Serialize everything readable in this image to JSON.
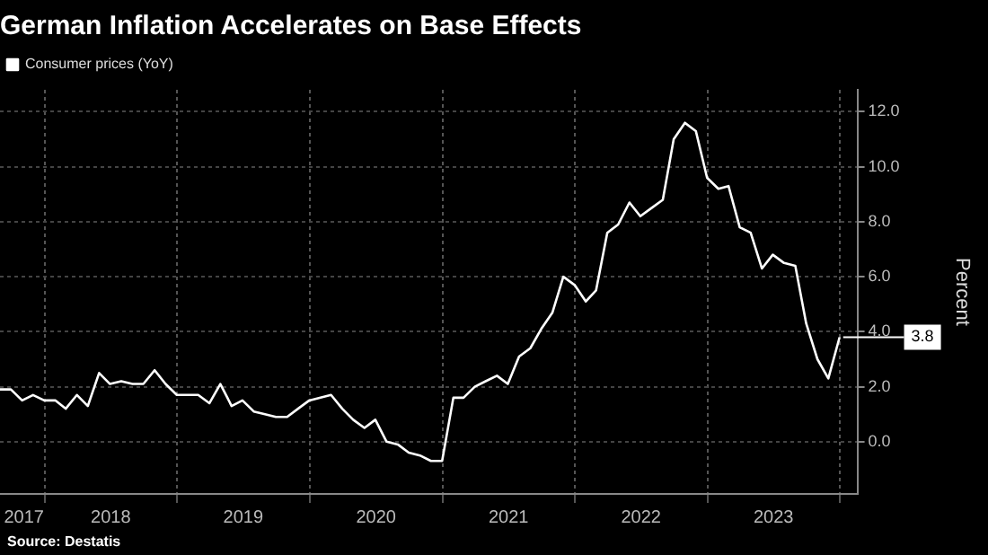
{
  "chart_data": {
    "type": "line",
    "title": "German Inflation Accelerates on Base Effects",
    "ylabel": "Percent",
    "x": [
      "2017-08-31",
      "2017-09-30",
      "2017-10-31",
      "2017-11-30",
      "2017-12-31",
      "2018-01-31",
      "2018-02-28",
      "2018-03-31",
      "2018-04-30",
      "2018-05-31",
      "2018-06-30",
      "2018-07-31",
      "2018-08-31",
      "2018-09-30",
      "2018-10-31",
      "2018-11-30",
      "2018-12-31",
      "2019-01-31",
      "2019-02-28",
      "2019-03-31",
      "2019-04-30",
      "2019-05-31",
      "2019-06-30",
      "2019-07-31",
      "2019-08-31",
      "2019-09-30",
      "2019-10-31",
      "2019-11-30",
      "2019-12-31",
      "2020-01-31",
      "2020-02-29",
      "2020-03-31",
      "2020-04-30",
      "2020-05-31",
      "2020-06-30",
      "2020-07-31",
      "2020-08-31",
      "2020-09-30",
      "2020-10-31",
      "2020-11-30",
      "2020-12-31",
      "2021-01-31",
      "2021-02-28",
      "2021-03-31",
      "2021-04-30",
      "2021-05-31",
      "2021-06-30",
      "2021-07-31",
      "2021-08-31",
      "2021-09-30",
      "2021-10-31",
      "2021-11-30",
      "2021-12-31",
      "2022-01-31",
      "2022-02-28",
      "2022-03-31",
      "2022-04-30",
      "2022-05-31",
      "2022-06-30",
      "2022-07-31",
      "2022-08-31",
      "2022-09-30",
      "2022-10-31",
      "2022-11-30",
      "2022-12-31",
      "2023-01-31",
      "2023-02-28",
      "2023-03-31",
      "2023-04-30",
      "2023-05-31",
      "2023-06-30",
      "2023-07-31",
      "2023-08-31",
      "2023-09-30",
      "2023-10-31",
      "2023-11-30",
      "2023-12-31"
    ],
    "series": [
      {
        "name": "Consumer prices (YoY)",
        "color": "#ffffff",
        "values": [
          1.9,
          1.9,
          1.5,
          1.7,
          1.5,
          1.5,
          1.2,
          1.7,
          1.3,
          2.5,
          2.1,
          2.2,
          2.1,
          2.1,
          2.6,
          2.1,
          1.7,
          1.7,
          1.7,
          1.4,
          2.1,
          1.3,
          1.5,
          1.1,
          1.0,
          0.9,
          0.9,
          1.2,
          1.5,
          1.6,
          1.7,
          1.2,
          0.8,
          0.5,
          0.8,
          0.0,
          -0.1,
          -0.4,
          -0.5,
          -0.7,
          -0.7,
          1.6,
          1.6,
          2.0,
          2.2,
          2.4,
          2.1,
          3.1,
          3.4,
          4.1,
          4.7,
          6.0,
          5.7,
          5.1,
          5.5,
          7.6,
          7.9,
          8.7,
          8.2,
          8.5,
          8.8,
          11.0,
          11.6,
          11.3,
          9.6,
          9.2,
          9.3,
          7.8,
          7.6,
          6.3,
          6.8,
          6.5,
          6.4,
          4.3,
          3.0,
          2.3,
          3.8
        ]
      }
    ],
    "xlim": [
      "2017-08-31",
      "2024-02-18"
    ],
    "xticks": [
      {
        "value": "2017-11-05",
        "label": "2017"
      },
      {
        "value": "2018-01-01",
        "label": null
      },
      {
        "value": "2018-07-02",
        "label": "2018"
      },
      {
        "value": "2019-01-01",
        "label": null
      },
      {
        "value": "2019-07-02",
        "label": "2019"
      },
      {
        "value": "2020-01-01",
        "label": null
      },
      {
        "value": "2020-07-02",
        "label": "2020"
      },
      {
        "value": "2021-01-01",
        "label": null
      },
      {
        "value": "2021-07-02",
        "label": "2021"
      },
      {
        "value": "2022-01-01",
        "label": null
      },
      {
        "value": "2022-07-02",
        "label": "2022"
      },
      {
        "value": "2023-01-01",
        "label": null
      },
      {
        "value": "2023-07-02",
        "label": "2023"
      },
      {
        "value": "2024-01-01",
        "label": null
      }
    ],
    "ylim": [
      -1.9,
      12.8
    ],
    "yticks": [
      {
        "value": 0,
        "label": "0.0"
      },
      {
        "value": 2,
        "label": "2.0"
      },
      {
        "value": 4,
        "label": "4.0"
      },
      {
        "value": 6,
        "label": "6.0"
      },
      {
        "value": 8,
        "label": "8.0"
      },
      {
        "value": 10,
        "label": "10.0"
      },
      {
        "value": 12,
        "label": "12.0"
      }
    ],
    "grid": true,
    "legend": "top left",
    "marker": "none",
    "line_style": "solid",
    "annotations": [
      "3.8",
      "Source: Destatis"
    ]
  }
}
